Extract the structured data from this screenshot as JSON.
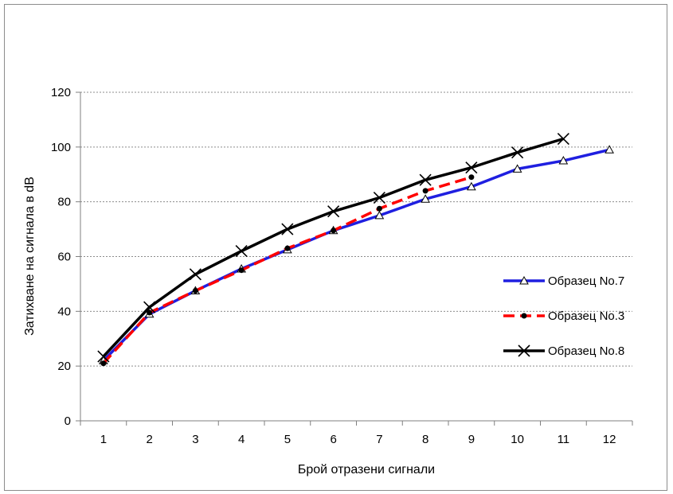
{
  "chart_data": {
    "type": "line",
    "title": "",
    "xlabel": "Брой отразени сигнали",
    "ylabel": "Затихване на сигнала в dB",
    "categories": [
      "1",
      "2",
      "3",
      "4",
      "5",
      "6",
      "7",
      "8",
      "9",
      "10",
      "11",
      "12"
    ],
    "ylim": [
      0,
      120
    ],
    "yticks": [
      0,
      20,
      40,
      60,
      80,
      100,
      120
    ],
    "grid": "horizontal",
    "legend_position": "right",
    "series": [
      {
        "name": "Образец No.7",
        "color": "#1f1fe0",
        "dash": "solid",
        "marker": "triangle",
        "values": [
          22,
          39,
          47.5,
          55.5,
          62.5,
          69.5,
          75,
          81,
          85.5,
          92,
          95,
          99
        ]
      },
      {
        "name": "Образец No.3",
        "color": "#ff0000",
        "dash": "dashed",
        "marker": "circle",
        "values": [
          21,
          39.5,
          47.5,
          55,
          63,
          69.5,
          77.5,
          84,
          89,
          null,
          null,
          null
        ]
      },
      {
        "name": "Образец No.8",
        "color": "#000000",
        "dash": "solid",
        "marker": "x",
        "values": [
          23.5,
          41.5,
          53.5,
          62,
          70,
          76.5,
          81.5,
          88,
          92.5,
          98,
          103,
          null
        ]
      }
    ]
  }
}
